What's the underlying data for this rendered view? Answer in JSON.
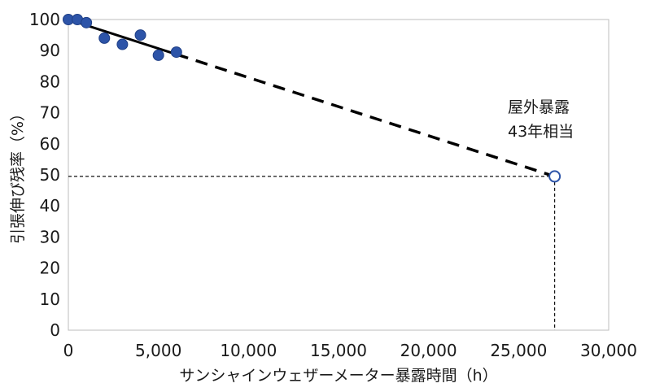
{
  "chart_data": {
    "type": "scatter",
    "title": "",
    "xlabel": "サンシャインウェザーメーター暴露時間（h）",
    "ylabel": "引張伸び残率（%）",
    "xlim": [
      0,
      30000
    ],
    "ylim": [
      0,
      100
    ],
    "xticks": [
      0,
      5000,
      10000,
      15000,
      20000,
      25000,
      30000
    ],
    "xtick_labels": [
      "0",
      "5,000",
      "10,000",
      "15,000",
      "20,000",
      "25,000",
      "30,000"
    ],
    "yticks": [
      0,
      10,
      20,
      30,
      40,
      50,
      60,
      70,
      80,
      90,
      100
    ],
    "ytick_labels": [
      "0",
      "10",
      "20",
      "30",
      "40",
      "50",
      "60",
      "70",
      "80",
      "90",
      "100"
    ],
    "grid": false,
    "series": [
      {
        "marker": "filled-circle",
        "color": "#2d54a8",
        "x": [
          0,
          500,
          1000,
          2000,
          3000,
          4000,
          5000,
          6000
        ],
        "y": [
          100,
          100,
          99,
          94,
          92,
          95,
          88.5,
          89.5
        ]
      },
      {
        "marker": "open-circle",
        "color": "#2d54a8",
        "x": [
          27000
        ],
        "y": [
          49.5
        ]
      }
    ],
    "fit_line": {
      "color": "#000000",
      "solid": {
        "x": [
          0,
          6000
        ],
        "y": [
          100,
          88.8
        ]
      },
      "dashed": {
        "x": [
          6000,
          27000
        ],
        "y": [
          88.8,
          49.5
        ]
      }
    },
    "guide_lines": {
      "x": 27000,
      "y": 49.5,
      "style": "dashed-thin"
    },
    "annotation": {
      "lines": [
        "屋外暴露",
        "43年相当"
      ],
      "anchor_x": 27000,
      "anchor_y": 49.5
    }
  }
}
